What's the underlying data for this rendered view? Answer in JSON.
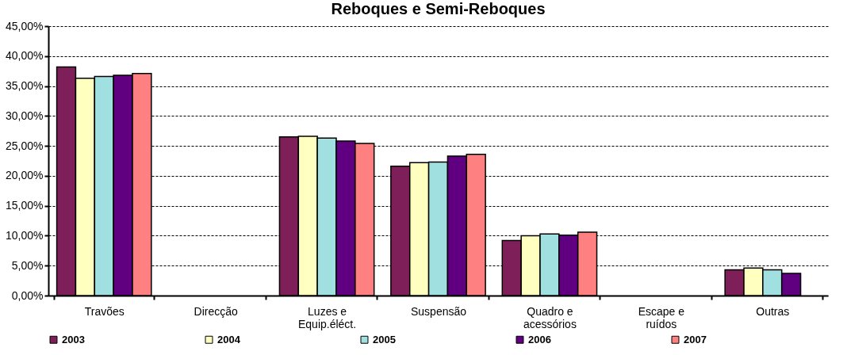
{
  "chart_data": {
    "type": "bar",
    "title": "Reboques e Semi-Reboques",
    "categories": [
      "Travões",
      "Direcção",
      "Luzes e Equip.éléct.",
      "Suspensão",
      "Quadro e acessórios",
      "Escape e ruídos",
      "Outras"
    ],
    "series": [
      {
        "name": "2003",
        "color": "#7f1f5a",
        "values": [
          38.2,
          null,
          26.5,
          21.6,
          9.2,
          null,
          4.3
        ]
      },
      {
        "name": "2004",
        "color": "#ffffc0",
        "values": [
          36.3,
          null,
          26.6,
          22.2,
          10.0,
          null,
          4.6
        ]
      },
      {
        "name": "2005",
        "color": "#a0e0e0",
        "values": [
          36.6,
          null,
          26.3,
          22.3,
          10.3,
          null,
          4.3
        ]
      },
      {
        "name": "2006",
        "color": "#600080",
        "values": [
          36.8,
          null,
          25.8,
          23.3,
          10.1,
          null,
          3.7
        ]
      },
      {
        "name": "2007",
        "color": "#ff8080",
        "values": [
          37.1,
          null,
          25.4,
          23.6,
          10.6,
          null,
          null
        ]
      }
    ],
    "ylim": [
      0,
      45
    ],
    "yticks": [
      {
        "value": 0,
        "label": "0,00%"
      },
      {
        "value": 5,
        "label": "5,00%"
      },
      {
        "value": 10,
        "label": "10,00%"
      },
      {
        "value": 15,
        "label": "15,00%"
      },
      {
        "value": 20,
        "label": "20,00%"
      },
      {
        "value": 25,
        "label": "25,00%"
      },
      {
        "value": 30,
        "label": "30,00%"
      },
      {
        "value": 35,
        "label": "35,00%"
      },
      {
        "value": 40,
        "label": "40,00%"
      },
      {
        "value": 45,
        "label": "45,00%"
      }
    ],
    "grid": "y",
    "line_style": "dashed",
    "legend": "bottom"
  }
}
